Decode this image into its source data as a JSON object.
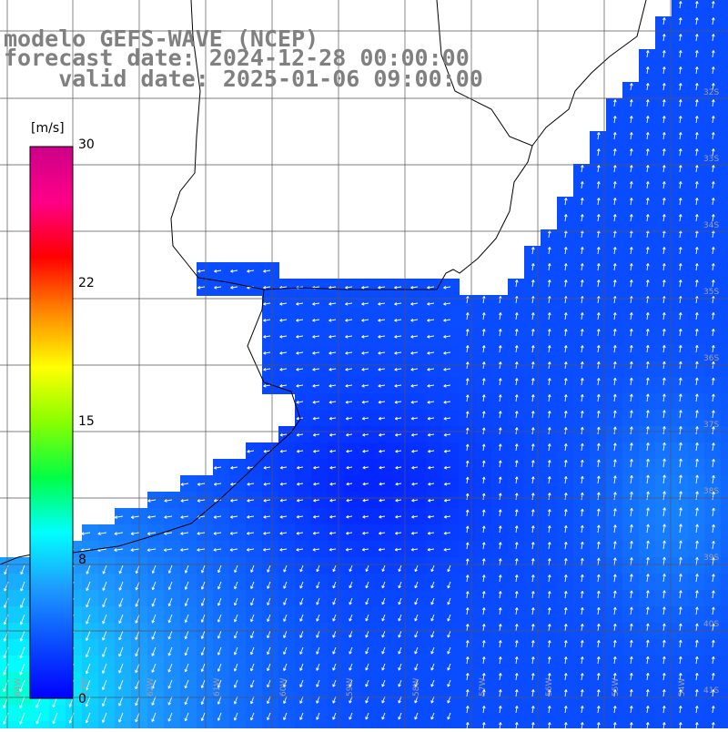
{
  "title": {
    "line1": "modelo GEFS-WAVE (NCEP)",
    "line2": "forecast date: 2024-12-28 00:00:00",
    "line3": "    valid date: 2025-01-06 09:00:00"
  },
  "colorbar": {
    "unit": "[m/s]",
    "ticks": [
      "30",
      "22",
      "15",
      "8",
      "0"
    ],
    "tick_values": [
      30,
      22,
      15,
      8,
      0
    ],
    "range": [
      0,
      30
    ],
    "stops": [
      "#0000ff",
      "#0a4cff",
      "#1e9bff",
      "#00ffff",
      "#00ff44",
      "#88ff00",
      "#ffff00",
      "#ff8800",
      "#ff0000",
      "#ff0088",
      "#cc0088"
    ]
  },
  "lat_labels": [
    "32S",
    "33S",
    "34S",
    "35S",
    "36S",
    "37S",
    "38S",
    "39S",
    "40S",
    "41S"
  ],
  "lon_labels": [
    "64W",
    "63W",
    "62W",
    "61W",
    "60W",
    "59W",
    "58W",
    "57W",
    "56W",
    "55W",
    "54W"
  ],
  "colors": {
    "land": "#ffffff",
    "coast": "#000000",
    "grid": "#555555",
    "arrow": "#ffffff",
    "title": "#808080"
  },
  "field": {
    "variable": "wind speed",
    "units": "m/s",
    "typical_open_sea": 3,
    "max_southwest": 10
  }
}
